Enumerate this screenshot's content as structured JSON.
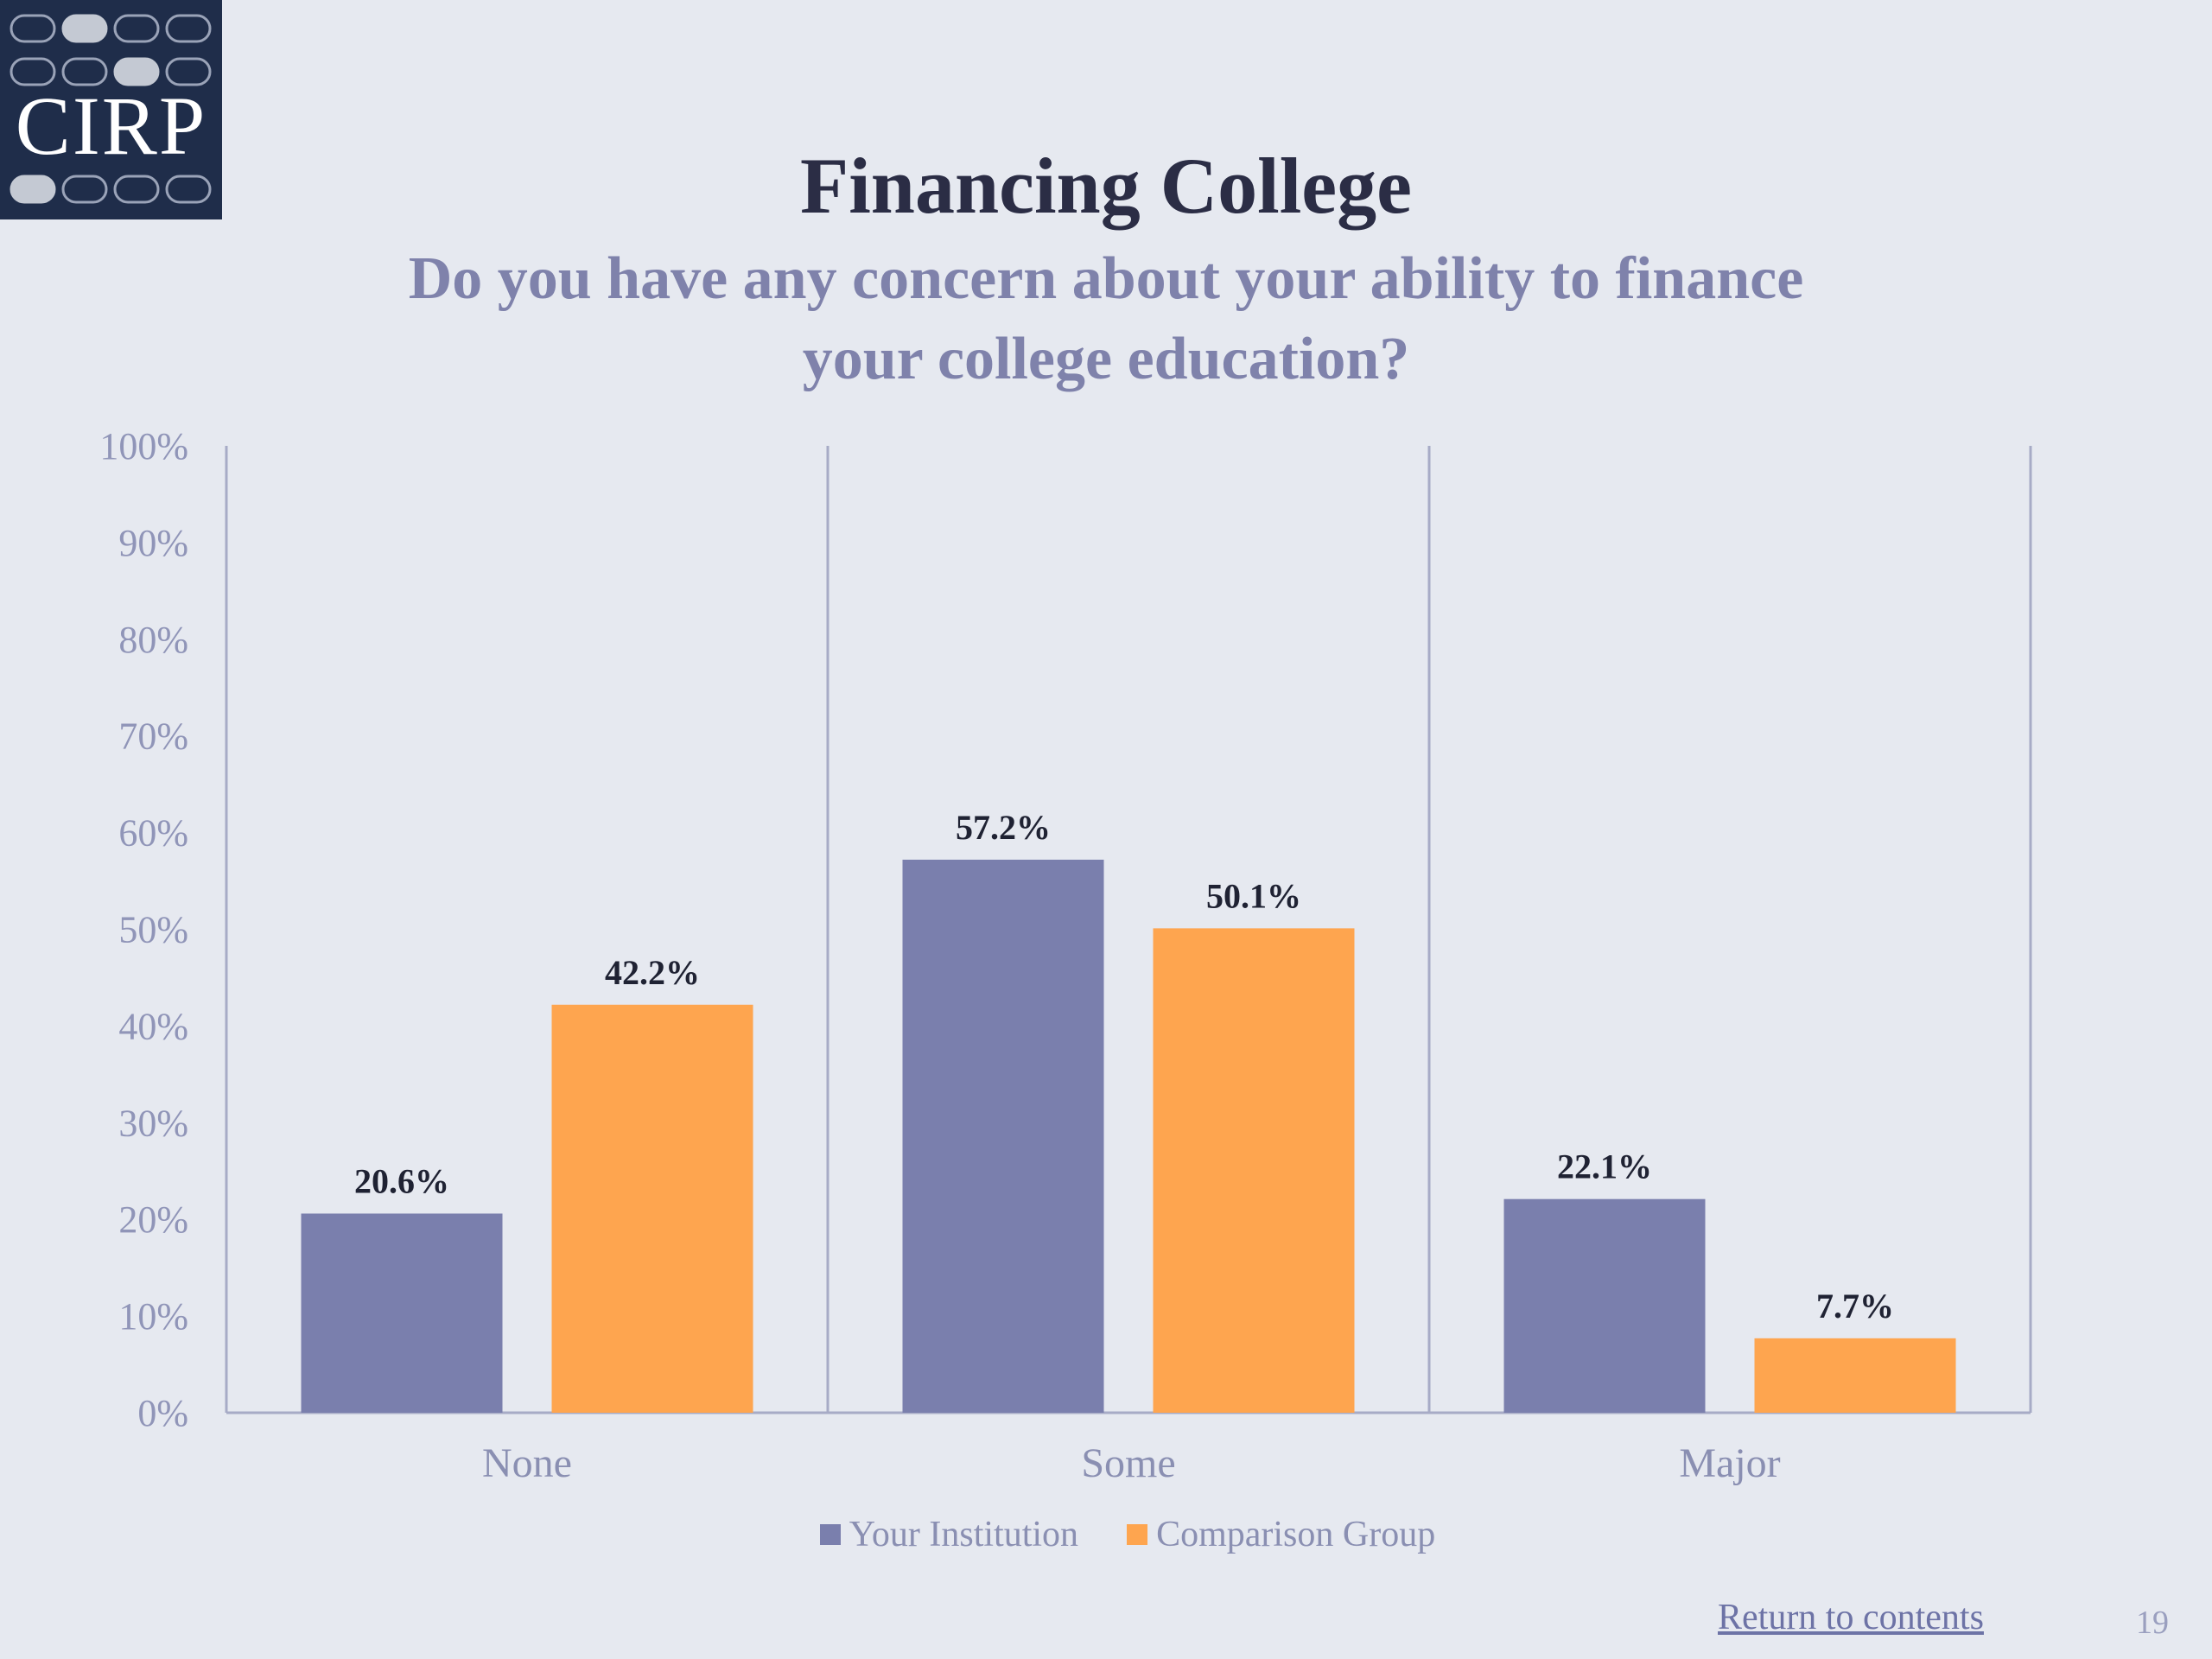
{
  "logo": {
    "text": "CIRP"
  },
  "chart_data": {
    "type": "bar",
    "title": "Financing College",
    "subtitle": "Do you have any concern about your ability to finance your college education?",
    "categories": [
      "None",
      "Some",
      "Major"
    ],
    "series": [
      {
        "name": "Your Institution",
        "color": "#7a7fad",
        "values": [
          20.6,
          57.2,
          22.1
        ],
        "labels": [
          "20.6%",
          "57.2%",
          "22.1%"
        ]
      },
      {
        "name": "Comparison Group",
        "color": "#fea54f",
        "values": [
          42.2,
          50.1,
          7.7
        ],
        "labels": [
          "42.2%",
          "50.1%",
          "7.7%"
        ]
      }
    ],
    "ylim": [
      0,
      100
    ],
    "y_ticks": [
      "0%",
      "10%",
      "20%",
      "30%",
      "40%",
      "50%",
      "60%",
      "70%",
      "80%",
      "90%",
      "100%"
    ],
    "xlabel": "",
    "ylabel": "",
    "legend_position": "bottom"
  },
  "footer": {
    "return_link": "Return to contents",
    "page_number": "19"
  }
}
